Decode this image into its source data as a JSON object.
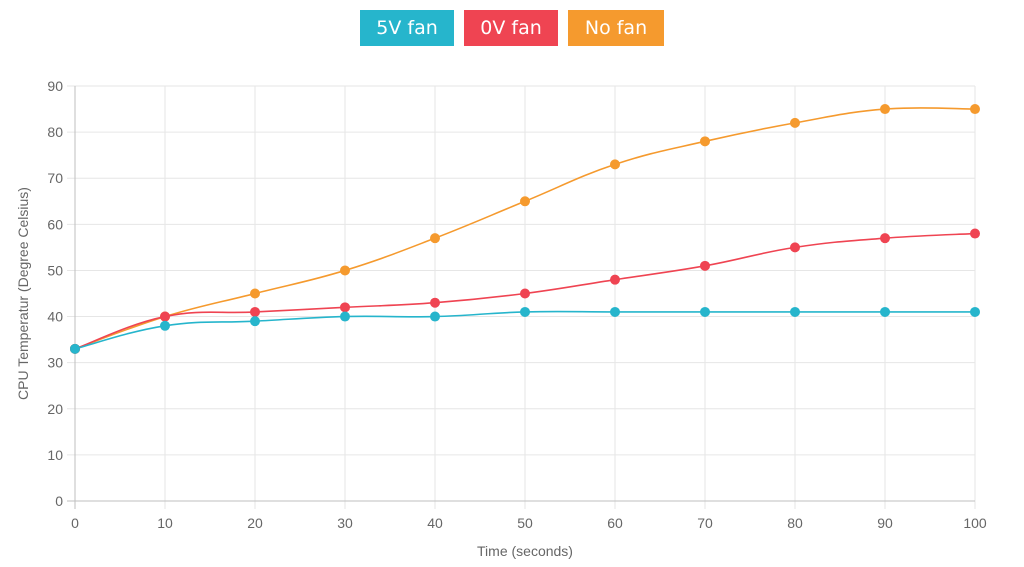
{
  "chart_data": {
    "type": "line",
    "x": [
      0,
      10,
      20,
      30,
      40,
      50,
      60,
      70,
      80,
      90,
      100
    ],
    "series": [
      {
        "name": "5V fan",
        "color": "#26b5cc",
        "values": [
          33,
          38,
          39,
          40,
          40,
          41,
          41,
          41,
          41,
          41,
          41
        ]
      },
      {
        "name": "0V fan",
        "color": "#ef4452",
        "values": [
          33,
          40,
          41,
          42,
          43,
          45,
          48,
          51,
          55,
          57,
          58
        ]
      },
      {
        "name": "No fan",
        "color": "#f59a2e",
        "values": [
          33,
          40,
          45,
          50,
          57,
          65,
          73,
          78,
          82,
          85,
          85
        ]
      }
    ],
    "xlabel": "Time (seconds)",
    "ylabel": "CPU Temperatur (Degree Celsius)",
    "xlim": [
      0,
      100
    ],
    "ylim": [
      0,
      90
    ],
    "xticks": [
      "0",
      "10",
      "20",
      "30",
      "40",
      "50",
      "60",
      "70",
      "80",
      "90",
      "100"
    ],
    "yticks": [
      "0",
      "10",
      "20",
      "30",
      "40",
      "50",
      "60",
      "70",
      "80",
      "90"
    ],
    "grid": true,
    "legend_position": "top-center"
  }
}
